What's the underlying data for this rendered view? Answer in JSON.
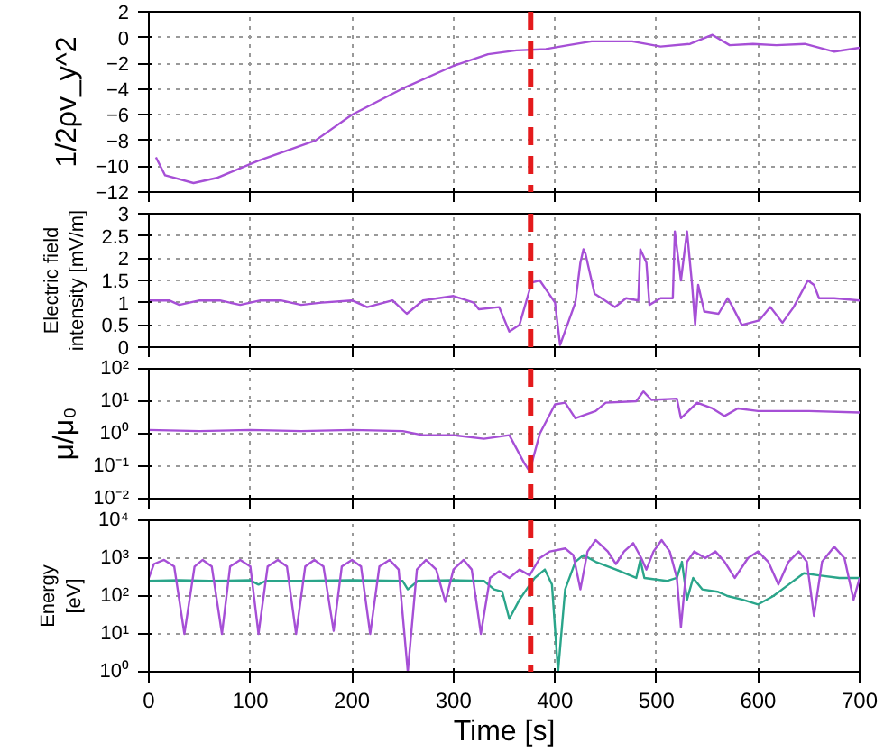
{
  "chart_data": [
    {
      "type": "line",
      "ylabel": "1/2ρv_y^2",
      "xlim": [
        0,
        700
      ],
      "xticks": [
        0,
        100,
        200,
        300,
        400,
        500,
        600,
        700
      ],
      "ylim": [
        -12,
        2
      ],
      "yticks": [
        -12,
        -10,
        -8,
        -6,
        -4,
        -2,
        0,
        2
      ],
      "grid": true,
      "tick_labels": "y",
      "ref_lines": [
        {
          "axis": "x",
          "value": 376,
          "color": "#e41a1c",
          "line_style": "dashed"
        }
      ],
      "series": [
        {
          "color": "#a64fd6",
          "x": [
            7,
            16,
            44,
            67,
            107,
            164,
            200,
            249,
            300,
            334,
            362,
            391,
            413,
            436,
            476,
            504,
            533,
            555,
            572,
            595,
            618,
            646,
            675,
            700
          ],
          "values": [
            -9.3,
            -10.7,
            -11.3,
            -10.9,
            -9.6,
            -8,
            -6,
            -4,
            -2.2,
            -1.3,
            -1,
            -0.9,
            -0.6,
            -0.3,
            -0.3,
            -0.7,
            -0.5,
            0.2,
            -0.6,
            -0.5,
            -0.6,
            -0.5,
            -1.1,
            -0.8
          ]
        }
      ]
    },
    {
      "type": "line",
      "ylabel": "Electric field\nintensity [mV/m]",
      "xlim": [
        0,
        700
      ],
      "xticks": [
        0,
        100,
        200,
        300,
        400,
        500,
        600,
        700
      ],
      "ylim": [
        0,
        3
      ],
      "yticks": [
        0,
        0.5,
        1,
        1.5,
        2,
        2.5,
        3
      ],
      "grid": true,
      "tick_labels": "y",
      "ref_lines": [
        {
          "axis": "x",
          "value": 376,
          "color": "#e41a1c",
          "line_style": "dashed"
        }
      ],
      "series": [
        {
          "color": "#a64fd6",
          "x": [
            0,
            20,
            30,
            50,
            70,
            90,
            110,
            130,
            150,
            170,
            200,
            215,
            240,
            254,
            270,
            300,
            320,
            325,
            345,
            355,
            365,
            377,
            385,
            400,
            405,
            420,
            425,
            428,
            430,
            439,
            459,
            470,
            482,
            484,
            490,
            493,
            504,
            516,
            518,
            524,
            530,
            535,
            538,
            541,
            547,
            561,
            570,
            575,
            584,
            601,
            612,
            624,
            635,
            649,
            655,
            660,
            675,
            700
          ],
          "values": [
            1.05,
            1.05,
            0.95,
            1.05,
            1.05,
            0.95,
            1.05,
            1.05,
            0.95,
            1.0,
            1.05,
            0.9,
            1.05,
            0.75,
            1.05,
            1.15,
            1.0,
            0.85,
            0.9,
            0.35,
            0.5,
            1.45,
            1.5,
            1.0,
            0.05,
            1.0,
            1.9,
            2.2,
            2.1,
            1.2,
            0.9,
            1.1,
            1.05,
            2.2,
            1.9,
            0.95,
            1.1,
            1.1,
            2.6,
            1.5,
            2.6,
            1.4,
            0.5,
            1.4,
            0.8,
            0.75,
            1.1,
            0.9,
            0.5,
            0.6,
            0.9,
            0.55,
            0.9,
            1.5,
            1.4,
            1.1,
            1.1,
            1.05
          ]
        }
      ]
    },
    {
      "type": "line",
      "ylabel": "μ/μ₀",
      "log": true,
      "xlim": [
        0,
        700
      ],
      "xticks": [
        0,
        100,
        200,
        300,
        400,
        500,
        600,
        700
      ],
      "ylim": [
        0.01,
        100
      ],
      "yticks": [
        {
          "value": 0.01,
          "label": "10⁻²"
        },
        {
          "value": 0.1,
          "label": "10⁻¹"
        },
        {
          "value": 1,
          "label": "10⁰"
        },
        {
          "value": 10,
          "label": "10¹"
        },
        {
          "value": 100,
          "label": "10²"
        }
      ],
      "grid": true,
      "tick_labels": "y",
      "ref_lines": [
        {
          "axis": "x",
          "value": 376,
          "color": "#e41a1c",
          "line_style": "dashed"
        }
      ],
      "series": [
        {
          "color": "#a64fd6",
          "x": [
            0,
            50,
            100,
            150,
            200,
            250,
            270,
            300,
            330,
            355,
            370,
            375,
            385,
            400,
            410,
            420,
            440,
            450,
            480,
            487,
            495,
            520,
            524,
            540,
            555,
            567,
            580,
            600,
            650,
            700
          ],
          "values": [
            1.3,
            1.2,
            1.3,
            1.2,
            1.3,
            1.2,
            0.9,
            0.9,
            0.7,
            0.9,
            0.12,
            0.07,
            1,
            8,
            9,
            3,
            5,
            9,
            10,
            20,
            11,
            12,
            3,
            9,
            6,
            3.5,
            6,
            5,
            5,
            4.5
          ]
        }
      ]
    },
    {
      "type": "line",
      "ylabel": "Energy\n[eV]",
      "xlabel": "Time [s]",
      "log": true,
      "xlim": [
        0,
        700
      ],
      "xticks": [
        0,
        100,
        200,
        300,
        400,
        500,
        600,
        700
      ],
      "ylim": [
        1,
        10000
      ],
      "yticks": [
        {
          "value": 1,
          "label": "10⁰"
        },
        {
          "value": 10,
          "label": "10¹"
        },
        {
          "value": 100,
          "label": "10²"
        },
        {
          "value": 1000,
          "label": "10³"
        },
        {
          "value": 10000,
          "label": "10⁴"
        }
      ],
      "grid": true,
      "ref_lines": [
        {
          "axis": "x",
          "value": 376,
          "color": "#e41a1c",
          "line_style": "dashed"
        }
      ],
      "series": [
        {
          "color": "#2aa58a",
          "x": [
            0,
            30,
            60,
            100,
            108,
            115,
            150,
            200,
            250,
            255,
            265,
            300,
            330,
            340,
            348,
            355,
            365,
            372,
            380,
            390,
            397,
            403,
            410,
            420,
            428,
            440,
            460,
            480,
            484,
            488,
            510,
            520,
            525,
            530,
            536,
            545,
            560,
            570,
            585,
            600,
            615,
            630,
            645,
            660,
            680,
            700
          ],
          "values": [
            250,
            260,
            250,
            260,
            200,
            250,
            250,
            260,
            250,
            150,
            250,
            260,
            250,
            150,
            130,
            25,
            80,
            150,
            300,
            500,
            200,
            1,
            150,
            800,
            1200,
            800,
            500,
            300,
            900,
            300,
            250,
            300,
            800,
            80,
            300,
            150,
            130,
            100,
            80,
            60,
            100,
            200,
            400,
            350,
            300,
            300
          ]
        },
        {
          "color": "#a64fd6",
          "x": [
            0,
            5,
            15,
            25,
            35,
            45,
            53,
            62,
            72,
            80,
            90,
            100,
            108,
            117,
            127,
            136,
            145,
            154,
            163,
            172,
            182,
            190,
            200,
            209,
            218,
            227,
            237,
            246,
            255,
            264,
            273,
            283,
            292,
            300,
            310,
            318,
            327,
            336,
            345,
            355,
            365,
            375,
            385,
            395,
            410,
            418,
            425,
            432,
            440,
            452,
            460,
            468,
            477,
            485,
            490,
            497,
            505,
            513,
            520,
            524,
            530,
            537,
            548,
            558,
            567,
            577,
            590,
            600,
            610,
            620,
            630,
            640,
            648,
            655,
            663,
            675,
            685,
            694,
            700
          ],
          "values": [
            300,
            700,
            900,
            600,
            10,
            600,
            900,
            600,
            10,
            600,
            900,
            600,
            10,
            600,
            900,
            600,
            10,
            600,
            900,
            600,
            12,
            600,
            900,
            600,
            10,
            600,
            900,
            500,
            1,
            500,
            900,
            500,
            70,
            500,
            900,
            500,
            10,
            300,
            450,
            300,
            500,
            350,
            1000,
            1500,
            1800,
            1200,
            150,
            1500,
            3000,
            1500,
            700,
            1500,
            2500,
            1000,
            500,
            1500,
            3000,
            1500,
            300,
            15,
            800,
            1500,
            1000,
            1500,
            800,
            300,
            1000,
            1500,
            800,
            200,
            800,
            1500,
            800,
            30,
            800,
            2000,
            1000,
            80,
            300
          ]
        }
      ]
    }
  ]
}
